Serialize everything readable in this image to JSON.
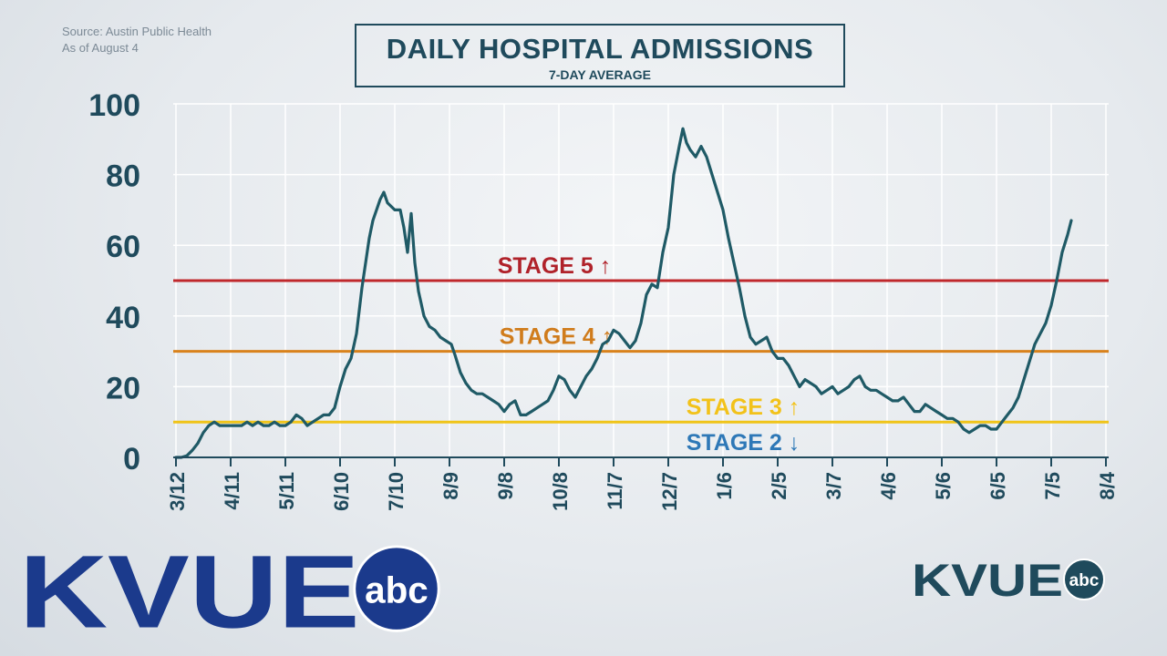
{
  "source": {
    "line1": "Source: Austin Public Health",
    "line2": "As of August 4"
  },
  "title": "DAILY HOSPITAL ADMISSIONS",
  "subtitle": "7-DAY AVERAGE",
  "logo": {
    "text": "KVUE",
    "badge": "abc",
    "color": "#1b3a8c",
    "small_color": "#1f4a5c"
  },
  "colors": {
    "line": "#1f5a66",
    "axis_text": "#1f4a5c",
    "grid": "#ffffff"
  },
  "chart_data": {
    "type": "line",
    "ylim": [
      0,
      100
    ],
    "yticks": [
      0,
      20,
      40,
      60,
      80,
      100
    ],
    "xticks": [
      "3/12",
      "4/11",
      "5/11",
      "6/10",
      "7/10",
      "8/9",
      "9/8",
      "10/8",
      "11/7",
      "12/7",
      "1/6",
      "2/5",
      "3/7",
      "4/6",
      "5/6",
      "6/5",
      "7/5",
      "8/4"
    ],
    "xrange_days": [
      0,
      510
    ],
    "xtick_interval_days": 30,
    "grid": true,
    "thresholds": [
      {
        "label": "STAGE 5",
        "arrow": "↑",
        "value": 50,
        "color": "#c0282c",
        "text_color": "#b0222a"
      },
      {
        "label": "STAGE 4",
        "arrow": "↑",
        "value": 30,
        "color": "#d9821c",
        "text_color": "#d07c1c"
      },
      {
        "label": "STAGE 3",
        "arrow": "↑",
        "value": 10,
        "color": "#f0c419",
        "text_color": "#f2c21a"
      },
      {
        "label": "STAGE 2",
        "arrow": "↓",
        "value": 10,
        "color": "#f0c419",
        "text_color": "#2e78b7"
      }
    ],
    "series": [
      {
        "points": [
          [
            0,
            0
          ],
          [
            3,
            0
          ],
          [
            6,
            0.5
          ],
          [
            9,
            2
          ],
          [
            12,
            4
          ],
          [
            15,
            7
          ],
          [
            18,
            9
          ],
          [
            21,
            10
          ],
          [
            24,
            9
          ],
          [
            27,
            9
          ],
          [
            30,
            9
          ],
          [
            33,
            9
          ],
          [
            36,
            9
          ],
          [
            39,
            10
          ],
          [
            42,
            9
          ],
          [
            45,
            10
          ],
          [
            48,
            9
          ],
          [
            51,
            9
          ],
          [
            54,
            10
          ],
          [
            57,
            9
          ],
          [
            60,
            9
          ],
          [
            63,
            10
          ],
          [
            66,
            12
          ],
          [
            69,
            11
          ],
          [
            72,
            9
          ],
          [
            75,
            10
          ],
          [
            78,
            11
          ],
          [
            81,
            12
          ],
          [
            84,
            12
          ],
          [
            87,
            14
          ],
          [
            90,
            20
          ],
          [
            93,
            25
          ],
          [
            96,
            28
          ],
          [
            99,
            35
          ],
          [
            102,
            48
          ],
          [
            104,
            55
          ],
          [
            106,
            62
          ],
          [
            108,
            67
          ],
          [
            110,
            70
          ],
          [
            112,
            73
          ],
          [
            114,
            75
          ],
          [
            116,
            72
          ],
          [
            118,
            71
          ],
          [
            120,
            70
          ],
          [
            123,
            70
          ],
          [
            125,
            65
          ],
          [
            127,
            58
          ],
          [
            129,
            69
          ],
          [
            131,
            55
          ],
          [
            133,
            47
          ],
          [
            136,
            40
          ],
          [
            139,
            37
          ],
          [
            142,
            36
          ],
          [
            145,
            34
          ],
          [
            148,
            33
          ],
          [
            151,
            32
          ],
          [
            153,
            29
          ],
          [
            156,
            24
          ],
          [
            159,
            21
          ],
          [
            162,
            19
          ],
          [
            165,
            18
          ],
          [
            168,
            18
          ],
          [
            171,
            17
          ],
          [
            174,
            16
          ],
          [
            177,
            15
          ],
          [
            180,
            13
          ],
          [
            183,
            15
          ],
          [
            186,
            16
          ],
          [
            189,
            12
          ],
          [
            192,
            12
          ],
          [
            195,
            13
          ],
          [
            198,
            14
          ],
          [
            201,
            15
          ],
          [
            204,
            16
          ],
          [
            207,
            19
          ],
          [
            210,
            23
          ],
          [
            213,
            22
          ],
          [
            216,
            19
          ],
          [
            219,
            17
          ],
          [
            222,
            20
          ],
          [
            225,
            23
          ],
          [
            228,
            25
          ],
          [
            231,
            28
          ],
          [
            234,
            32
          ],
          [
            237,
            33
          ],
          [
            240,
            36
          ],
          [
            243,
            35
          ],
          [
            246,
            33
          ],
          [
            249,
            31
          ],
          [
            252,
            33
          ],
          [
            255,
            38
          ],
          [
            258,
            46
          ],
          [
            261,
            49
          ],
          [
            264,
            48
          ],
          [
            267,
            58
          ],
          [
            270,
            65
          ],
          [
            273,
            80
          ],
          [
            276,
            88
          ],
          [
            278,
            93
          ],
          [
            280,
            89
          ],
          [
            282,
            87
          ],
          [
            285,
            85
          ],
          [
            288,
            88
          ],
          [
            291,
            85
          ],
          [
            294,
            80
          ],
          [
            297,
            75
          ],
          [
            300,
            70
          ],
          [
            303,
            62
          ],
          [
            306,
            55
          ],
          [
            309,
            48
          ],
          [
            312,
            40
          ],
          [
            315,
            34
          ],
          [
            318,
            32
          ],
          [
            321,
            33
          ],
          [
            324,
            34
          ],
          [
            327,
            30
          ],
          [
            330,
            28
          ],
          [
            333,
            28
          ],
          [
            336,
            26
          ],
          [
            339,
            23
          ],
          [
            342,
            20
          ],
          [
            345,
            22
          ],
          [
            348,
            21
          ],
          [
            351,
            20
          ],
          [
            354,
            18
          ],
          [
            357,
            19
          ],
          [
            360,
            20
          ],
          [
            363,
            18
          ],
          [
            366,
            19
          ],
          [
            369,
            20
          ],
          [
            372,
            22
          ],
          [
            375,
            23
          ],
          [
            378,
            20
          ],
          [
            381,
            19
          ],
          [
            384,
            19
          ],
          [
            387,
            18
          ],
          [
            390,
            17
          ],
          [
            393,
            16
          ],
          [
            396,
            16
          ],
          [
            399,
            17
          ],
          [
            402,
            15
          ],
          [
            405,
            13
          ],
          [
            408,
            13
          ],
          [
            411,
            15
          ],
          [
            414,
            14
          ],
          [
            417,
            13
          ],
          [
            420,
            12
          ],
          [
            423,
            11
          ],
          [
            426,
            11
          ],
          [
            429,
            10
          ],
          [
            432,
            8
          ],
          [
            435,
            7
          ],
          [
            438,
            8
          ],
          [
            441,
            9
          ],
          [
            444,
            9
          ],
          [
            447,
            8
          ],
          [
            450,
            8
          ],
          [
            453,
            10
          ],
          [
            456,
            12
          ],
          [
            459,
            14
          ],
          [
            462,
            17
          ],
          [
            465,
            22
          ],
          [
            468,
            27
          ],
          [
            471,
            32
          ],
          [
            474,
            35
          ],
          [
            477,
            38
          ],
          [
            480,
            43
          ],
          [
            483,
            50
          ],
          [
            486,
            58
          ],
          [
            489,
            63
          ],
          [
            491,
            67
          ]
        ]
      }
    ]
  }
}
